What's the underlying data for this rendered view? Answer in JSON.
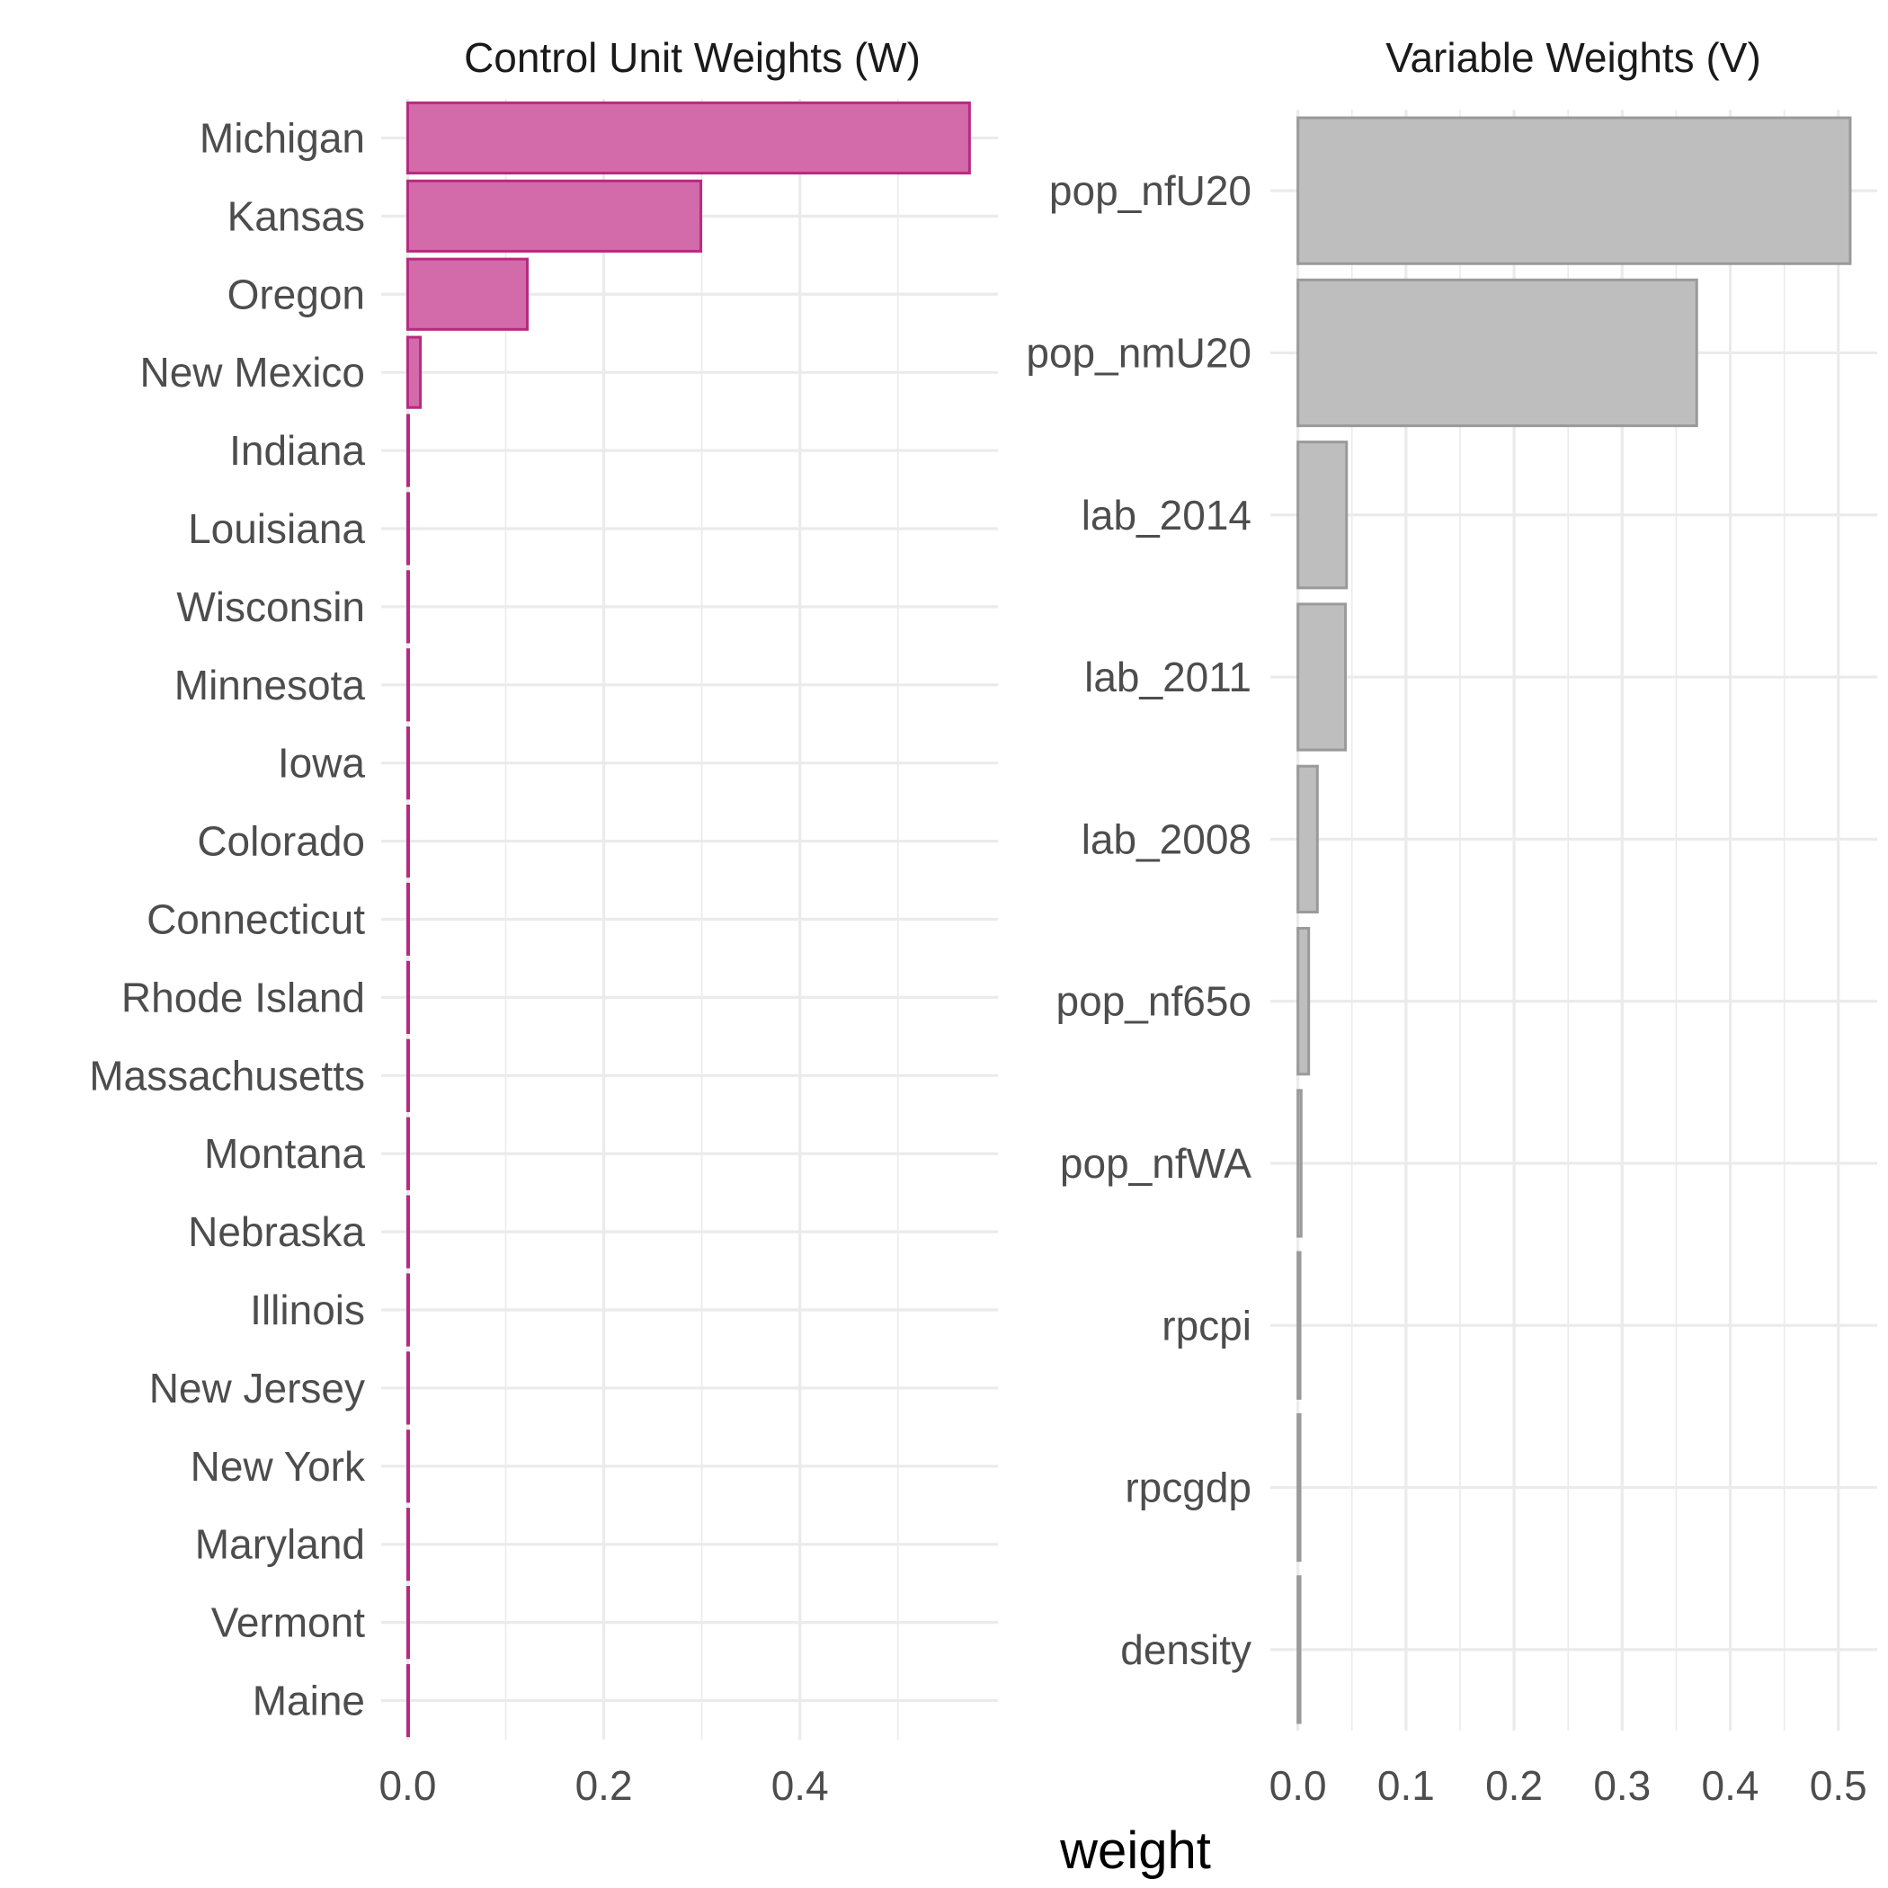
{
  "chart_data": [
    {
      "type": "bar",
      "orientation": "horizontal",
      "title": "Control Unit Weights (W)",
      "categories": [
        "Michigan",
        "Kansas",
        "Oregon",
        "New Mexico",
        "Indiana",
        "Louisiana",
        "Wisconsin",
        "Minnesota",
        "Iowa",
        "Colorado",
        "Connecticut",
        "Rhode Island",
        "Massachusetts",
        "Montana",
        "Nebraska",
        "Illinois",
        "New Jersey",
        "New York",
        "Maryland",
        "Vermont",
        "Maine"
      ],
      "values": [
        0.573,
        0.299,
        0.122,
        0.013,
        0.001,
        0.001,
        0.001,
        0.001,
        0.001,
        0.001,
        0.001,
        0.001,
        0.001,
        0.001,
        0.001,
        0.001,
        0.001,
        0.001,
        0.001,
        0.001,
        0.001
      ],
      "xlim": [
        -0.027,
        0.602
      ],
      "xticks": [
        0.0,
        0.2,
        0.4
      ],
      "xtick_labels": [
        "0.0",
        "0.2",
        "0.4"
      ],
      "colors": {
        "fill": "#d36aa9",
        "stroke": "#b62b81"
      }
    },
    {
      "type": "bar",
      "orientation": "horizontal",
      "title": "Variable Weights (V)",
      "categories": [
        "pop_nfU20",
        "pop_nmU20",
        "lab_2014",
        "lab_2011",
        "lab_2008",
        "pop_nf65o",
        "pop_nfWA",
        "rpcpi",
        "rpcgdp",
        "density"
      ],
      "values": [
        0.511,
        0.369,
        0.045,
        0.044,
        0.018,
        0.01,
        0.003,
        0.002,
        0.002,
        0.002
      ],
      "xlim": [
        -0.0255,
        0.536
      ],
      "xticks": [
        0.0,
        0.1,
        0.2,
        0.3,
        0.4,
        0.5
      ],
      "xtick_labels": [
        "0.0",
        "0.1",
        "0.2",
        "0.3",
        "0.4",
        "0.5"
      ],
      "colors": {
        "fill": "#bebebe",
        "stroke": "#9a9a9a"
      }
    }
  ],
  "xlabel": "weight",
  "grid": true,
  "legend": "none"
}
